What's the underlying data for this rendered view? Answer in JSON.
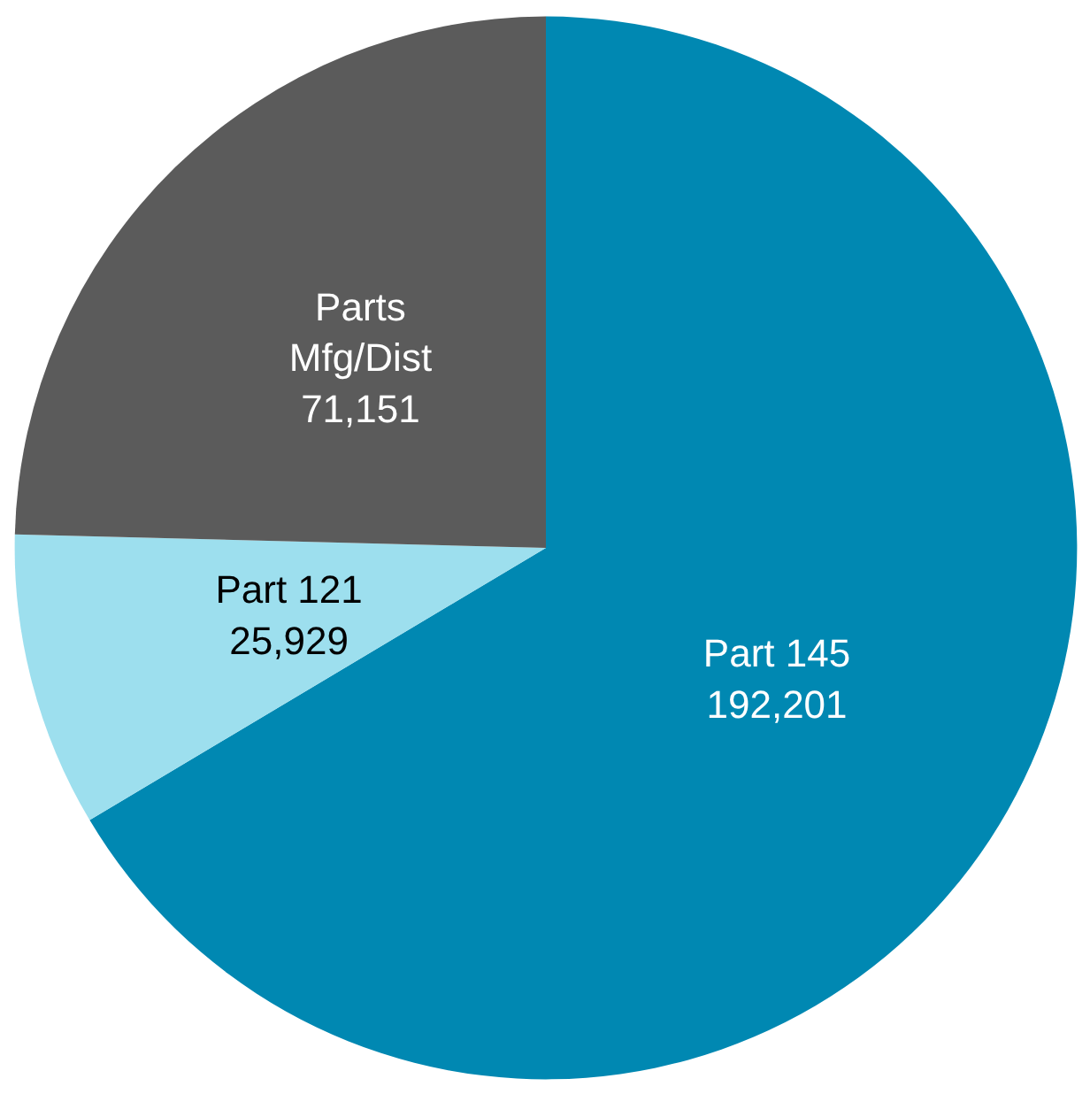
{
  "chart_data": {
    "type": "pie",
    "categories": [
      "Part 145",
      "Part 121",
      "Parts Mfg/Dist"
    ],
    "values": [
      192201,
      25929,
      71151
    ],
    "colors": [
      "#0088b2",
      "#9ddfee",
      "#5b5b5b"
    ],
    "value_labels": [
      "192,201",
      "25,929",
      "71,151"
    ]
  }
}
